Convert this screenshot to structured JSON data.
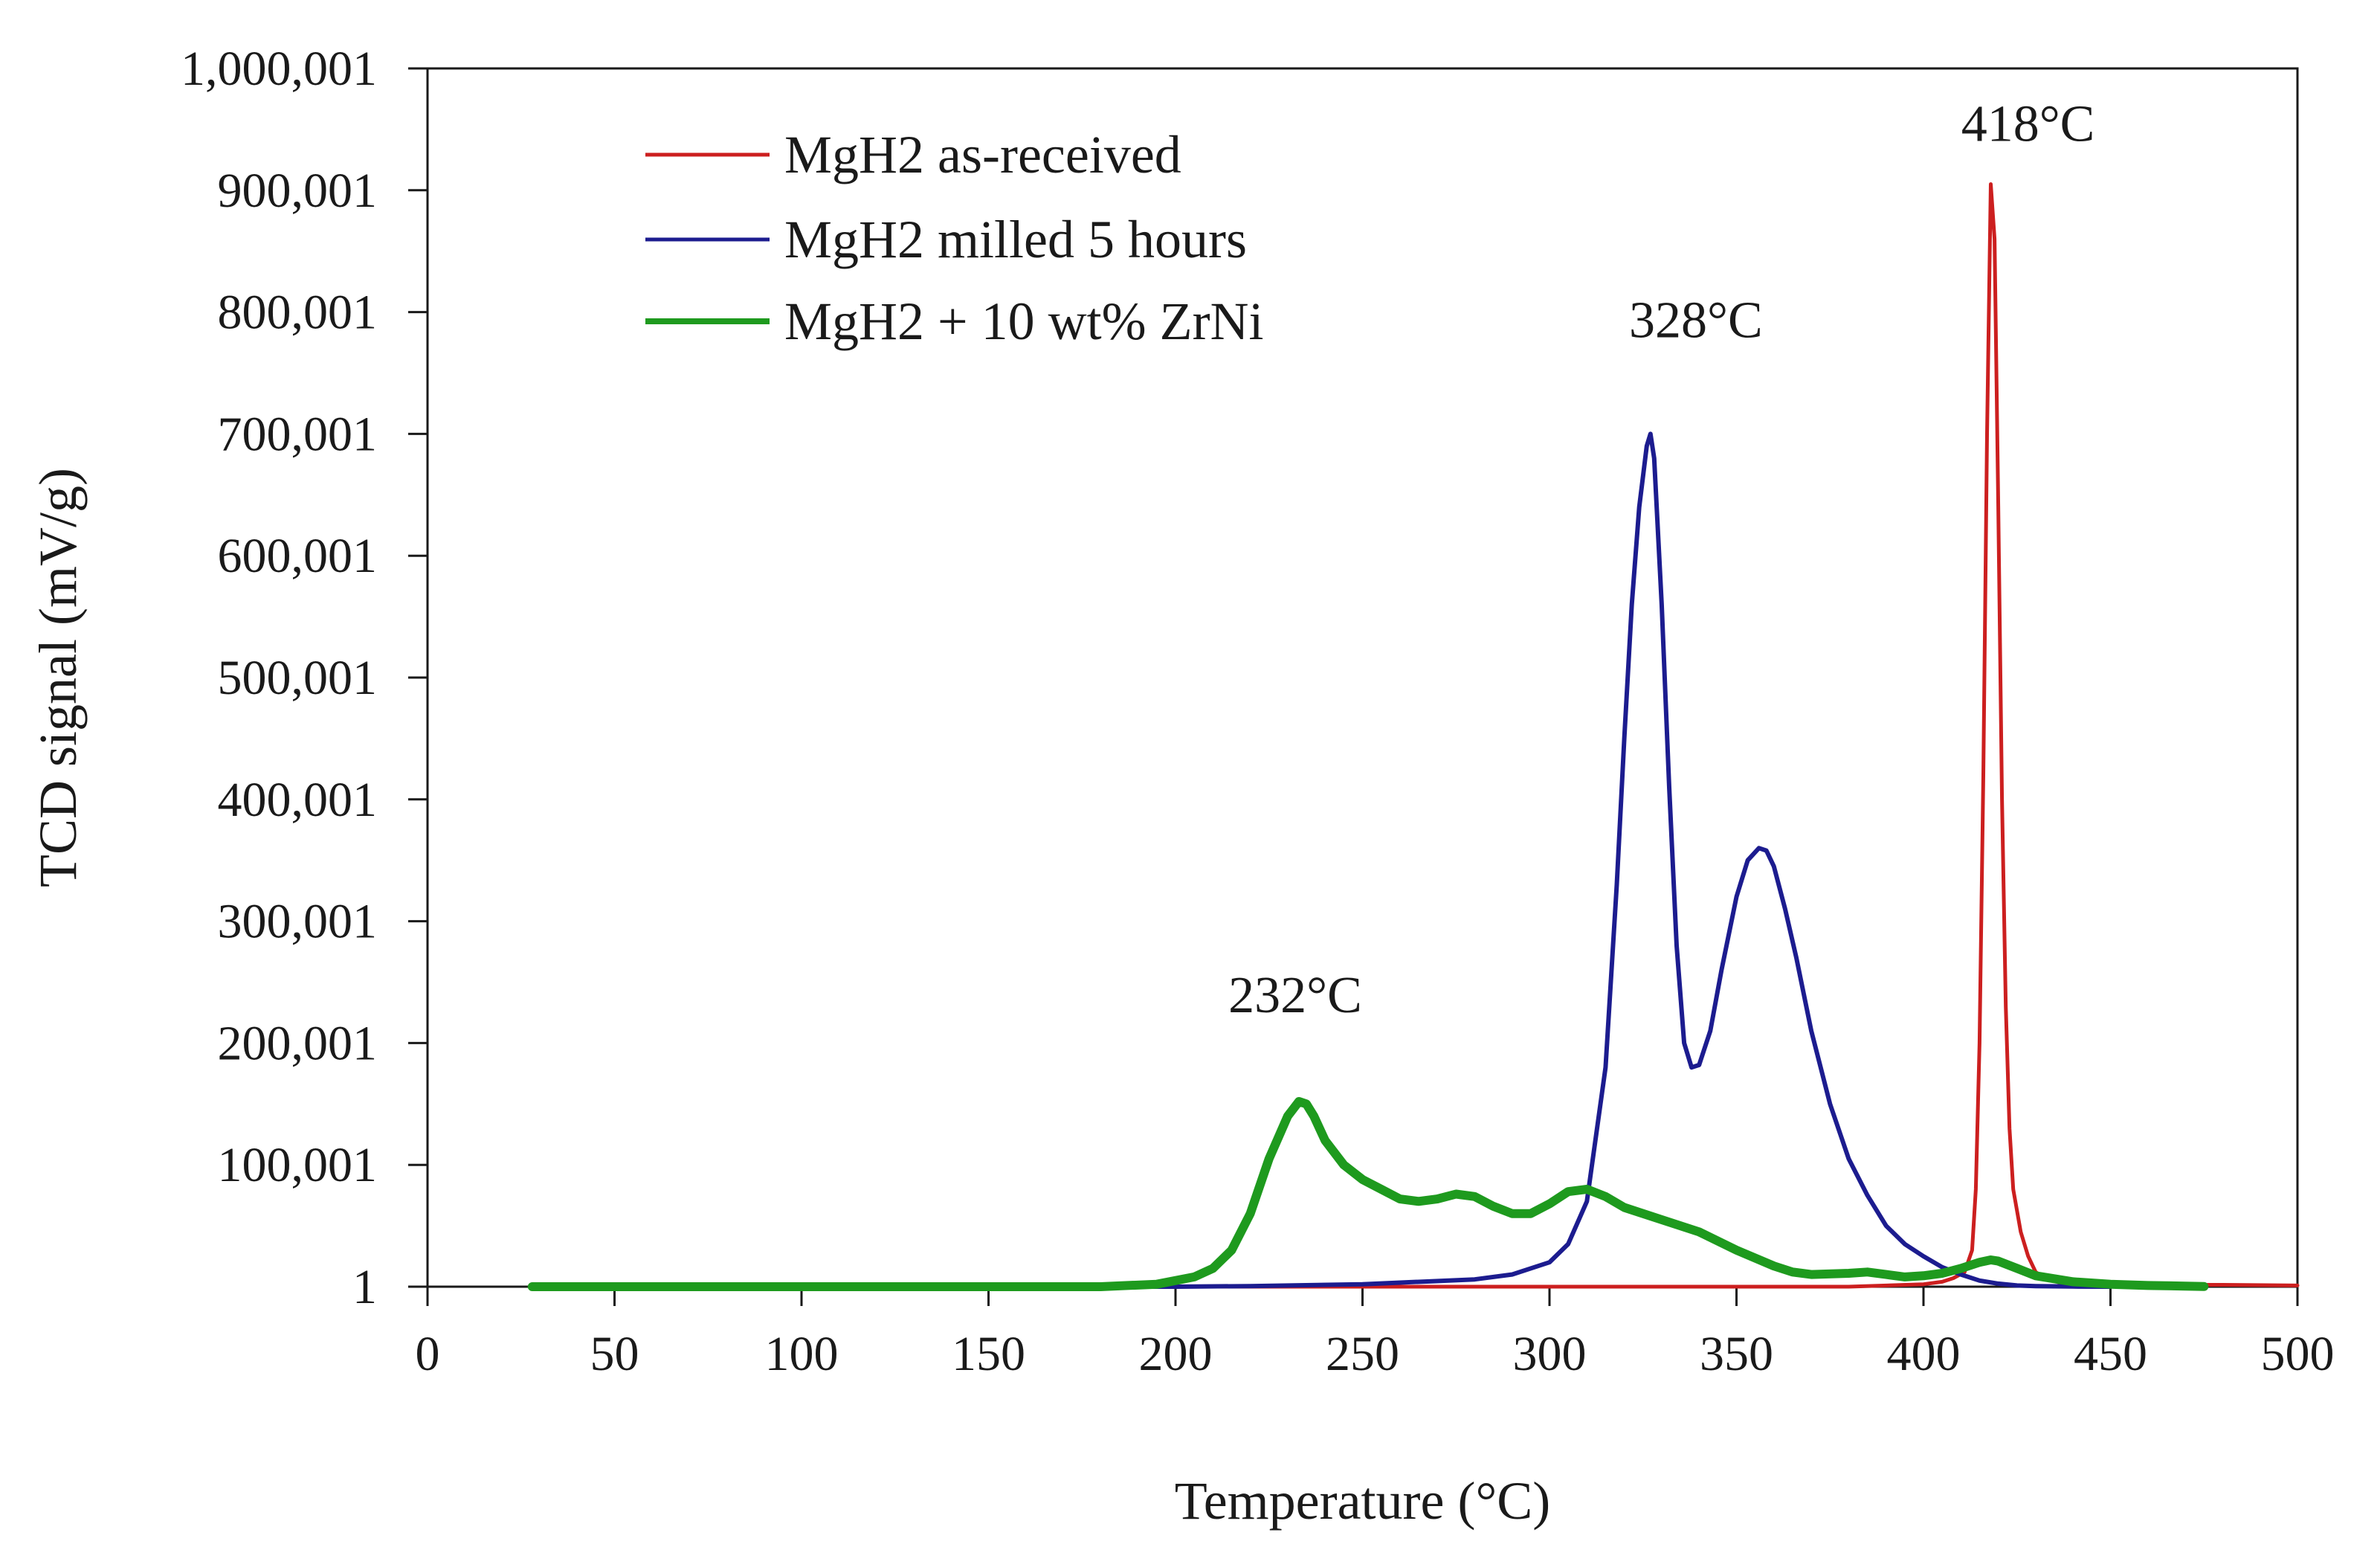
{
  "chart_data": {
    "type": "line",
    "title": "",
    "xlabel": "Temperature (°C)",
    "ylabel": "TCD signal (mV/g)",
    "xlim": [
      0,
      500
    ],
    "ylim": [
      1,
      1000001
    ],
    "xticks": [
      0,
      50,
      100,
      150,
      200,
      250,
      300,
      350,
      400,
      450,
      500
    ],
    "xtick_labels": [
      "0",
      "50",
      "100",
      "150",
      "200",
      "250",
      "300",
      "350",
      "400",
      "450",
      "500"
    ],
    "yticks": [
      1,
      100001,
      200001,
      300001,
      400001,
      500001,
      600001,
      700001,
      800001,
      900001,
      1000001
    ],
    "ytick_labels": [
      "1",
      "100,001",
      "200,001",
      "300,001",
      "400,001",
      "500,001",
      "600,001",
      "700,001",
      "800,001",
      "900,001",
      "1,000,001"
    ],
    "grid": false,
    "legend_position": "top-left",
    "series": [
      {
        "name": "MgH2 as-received",
        "color": "#cc1f1f",
        "x": [
          28,
          100,
          200,
          300,
          380,
          400,
          405,
          408,
          411,
          413,
          414,
          415,
          416,
          417,
          418,
          419,
          420,
          421,
          422,
          423,
          424,
          426,
          428,
          430,
          433,
          437,
          445,
          460,
          480,
          500
        ],
        "y": [
          1,
          1,
          1,
          1,
          1,
          2000,
          4000,
          7000,
          12000,
          30000,
          80000,
          200000,
          420000,
          700000,
          905001,
          860000,
          640000,
          400000,
          230000,
          130000,
          80000,
          45000,
          25000,
          12000,
          6000,
          3000,
          2000,
          1500,
          1500,
          1000
        ]
      },
      {
        "name": "MgH2 milled 5 hours",
        "color": "#1c1c8f",
        "x": [
          28,
          100,
          200,
          220,
          250,
          280,
          290,
          300,
          305,
          310,
          315,
          318,
          320,
          322,
          324,
          326,
          327,
          328,
          330,
          332,
          334,
          336,
          338,
          340,
          343,
          346,
          350,
          353,
          356,
          358,
          360,
          363,
          366,
          370,
          375,
          380,
          385,
          390,
          395,
          400,
          405,
          410,
          415,
          420,
          425,
          430,
          440,
          450
        ],
        "y": [
          1,
          1,
          1,
          500,
          2000,
          6000,
          10000,
          20000,
          35000,
          70000,
          180000,
          330000,
          450000,
          560000,
          640000,
          690000,
          700001,
          680000,
          560000,
          410000,
          280000,
          200000,
          180000,
          182000,
          210000,
          260000,
          320000,
          350000,
          360000,
          358000,
          345000,
          310000,
          270000,
          210000,
          150000,
          105000,
          75000,
          50000,
          35000,
          25000,
          16000,
          10000,
          5000,
          2500,
          1000,
          500,
          100,
          1
        ]
      },
      {
        "name": "MgH2 + 10 wt% ZrNi",
        "color": "#1e9a1e",
        "x": [
          28,
          100,
          180,
          195,
          205,
          210,
          215,
          220,
          225,
          230,
          233,
          235,
          237,
          240,
          245,
          250,
          255,
          260,
          265,
          270,
          275,
          280,
          285,
          290,
          295,
          300,
          305,
          310,
          315,
          320,
          330,
          340,
          350,
          360,
          365,
          370,
          380,
          385,
          390,
          395,
          400,
          405,
          410,
          415,
          418,
          420,
          425,
          430,
          440,
          450,
          460,
          470,
          475
        ],
        "y": [
          1,
          1,
          1,
          2000,
          8000,
          15000,
          30000,
          60000,
          105000,
          140000,
          152001,
          150000,
          140000,
          120000,
          100000,
          88000,
          80000,
          72000,
          70000,
          72000,
          76000,
          74000,
          66000,
          60000,
          60000,
          68000,
          78000,
          80000,
          74000,
          65000,
          55000,
          45000,
          30000,
          17000,
          12000,
          10000,
          11000,
          12000,
          10000,
          8000,
          9000,
          11000,
          15000,
          20000,
          22000,
          21000,
          15000,
          9000,
          4000,
          2000,
          1000,
          500,
          100
        ]
      }
    ],
    "annotations": [
      {
        "text": "232°C",
        "x": 232
      },
      {
        "text": "328°C",
        "x": 328
      },
      {
        "text": "418°C",
        "x": 418
      }
    ]
  }
}
